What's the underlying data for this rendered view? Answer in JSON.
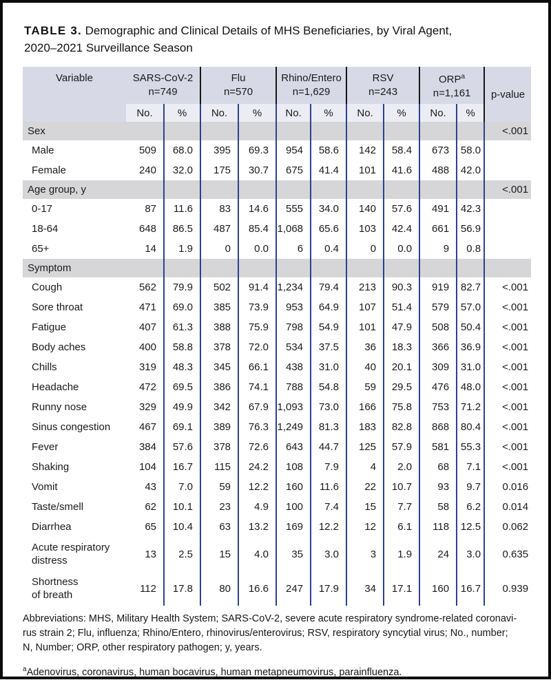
{
  "title": {
    "label": "TABLE 3.",
    "text": "Demographic and Clinical Details of MHS Beneficiaries, by Viral Agent,\n2020–2021 Surveillance Season"
  },
  "colors": {
    "header_bg": "#d7d9e6",
    "subheader_bg": "#ebecf4",
    "section_band_bg": "#d6d6d9",
    "rule_blue": "#2a418f",
    "rule_black": "#161616"
  },
  "table": {
    "variable_header": "Variable",
    "pvalue_header": "p-value",
    "groups": [
      {
        "name": "SARS-CoV-2",
        "n": "n=749"
      },
      {
        "name": "Flu",
        "n": "n=570"
      },
      {
        "name": "Rhino/Entero",
        "n": "n=1,629"
      },
      {
        "name": "RSV",
        "n": "n=243"
      },
      {
        "name": "ORP",
        "sup": "a",
        "n": "n=1,161"
      }
    ],
    "subheaders": {
      "no": "No.",
      "pct": "%"
    },
    "rows": [
      {
        "type": "section",
        "label": "Sex",
        "p": "<.001"
      },
      {
        "type": "data",
        "label": "Male",
        "values": [
          "509",
          "68.0",
          "395",
          "69.3",
          "954",
          "58.6",
          "142",
          "58.4",
          "673",
          "58.0"
        ],
        "p": ""
      },
      {
        "type": "data",
        "label": "Female",
        "values": [
          "240",
          "32.0",
          "175",
          "30.7",
          "675",
          "41.4",
          "101",
          "41.6",
          "488",
          "42.0"
        ],
        "p": ""
      },
      {
        "type": "section",
        "label": "Age group, y",
        "p": "<.001"
      },
      {
        "type": "data",
        "label": "0-17",
        "values": [
          "87",
          "11.6",
          "83",
          "14.6",
          "555",
          "34.0",
          "140",
          "57.6",
          "491",
          "42.3"
        ],
        "p": ""
      },
      {
        "type": "data",
        "label": "18-64",
        "values": [
          "648",
          "86.5",
          "487",
          "85.4",
          "1,068",
          "65.6",
          "103",
          "42.4",
          "661",
          "56.9"
        ],
        "p": ""
      },
      {
        "type": "data",
        "label": "65+",
        "values": [
          "14",
          "1.9",
          "0",
          "0.0",
          "6",
          "0.4",
          "0",
          "0.0",
          "9",
          "0.8"
        ],
        "p": ""
      },
      {
        "type": "section",
        "label": "Symptom",
        "p": ""
      },
      {
        "type": "data",
        "label": "Cough",
        "values": [
          "562",
          "79.9",
          "502",
          "91.4",
          "1,234",
          "79.4",
          "213",
          "90.3",
          "919",
          "82.7"
        ],
        "p": "<.001"
      },
      {
        "type": "data",
        "label": "Sore throat",
        "values": [
          "471",
          "69.0",
          "385",
          "73.9",
          "953",
          "64.9",
          "107",
          "51.4",
          "579",
          "57.0"
        ],
        "p": "<.001"
      },
      {
        "type": "data",
        "label": "Fatigue",
        "values": [
          "407",
          "61.3",
          "388",
          "75.9",
          "798",
          "54.9",
          "101",
          "47.9",
          "508",
          "50.4"
        ],
        "p": "<.001"
      },
      {
        "type": "data",
        "label": "Body aches",
        "values": [
          "400",
          "58.8",
          "378",
          "72.0",
          "534",
          "37.5",
          "36",
          "18.3",
          "366",
          "36.9"
        ],
        "p": "<.001"
      },
      {
        "type": "data",
        "label": "Chills",
        "values": [
          "319",
          "48.3",
          "345",
          "66.1",
          "438",
          "31.0",
          "40",
          "20.1",
          "309",
          "31.0"
        ],
        "p": "<.001"
      },
      {
        "type": "data",
        "label": "Headache",
        "values": [
          "472",
          "69.5",
          "386",
          "74.1",
          "788",
          "54.8",
          "59",
          "29.5",
          "476",
          "48.0"
        ],
        "p": "<.001"
      },
      {
        "type": "data",
        "label": "Runny nose",
        "values": [
          "329",
          "49.9",
          "342",
          "67.9",
          "1,093",
          "73.0",
          "166",
          "75.8",
          "753",
          "71.2"
        ],
        "p": "<.001"
      },
      {
        "type": "data",
        "label": "Sinus congestion",
        "values": [
          "467",
          "69.1",
          "389",
          "76.3",
          "1,249",
          "81.3",
          "183",
          "82.8",
          "868",
          "80.4"
        ],
        "p": "<.001"
      },
      {
        "type": "data",
        "label": "Fever",
        "values": [
          "384",
          "57.6",
          "378",
          "72.6",
          "643",
          "44.7",
          "125",
          "57.9",
          "581",
          "55.3"
        ],
        "p": "<.001"
      },
      {
        "type": "data",
        "label": "Shaking",
        "values": [
          "104",
          "16.7",
          "115",
          "24.2",
          "108",
          "7.9",
          "4",
          "2.0",
          "68",
          "7.1"
        ],
        "p": "<.001"
      },
      {
        "type": "data",
        "label": "Vomit",
        "values": [
          "43",
          "7.0",
          "59",
          "12.2",
          "160",
          "11.6",
          "22",
          "10.7",
          "93",
          "9.7"
        ],
        "p": "0.016"
      },
      {
        "type": "data",
        "label": "Taste/smell",
        "values": [
          "62",
          "10.1",
          "23",
          "4.9",
          "100",
          "7.4",
          "15",
          "7.7",
          "58",
          "6.2"
        ],
        "p": "0.014"
      },
      {
        "type": "data",
        "label": "Diarrhea",
        "values": [
          "65",
          "10.4",
          "63",
          "13.2",
          "169",
          "12.2",
          "12",
          "6.1",
          "118",
          "12.5"
        ],
        "p": "0.062"
      },
      {
        "type": "data",
        "tall": true,
        "label": "Acute respiratory\ndistress",
        "values": [
          "13",
          "2.5",
          "15",
          "4.0",
          "35",
          "3.0",
          "3",
          "1.9",
          "24",
          "3.0"
        ],
        "p": "0.635"
      },
      {
        "type": "data",
        "tall": true,
        "label": "Shortness\nof breath",
        "values": [
          "112",
          "17.8",
          "80",
          "16.6",
          "247",
          "17.9",
          "34",
          "17.1",
          "160",
          "16.7"
        ],
        "p": "0.939"
      }
    ]
  },
  "footnotes": {
    "abbreviations": "Abbreviations: MHS, Military Health System; SARS-CoV-2, severe acute respiratory syndrome-related coronavi-\nrus strain 2; Flu, influenza; Rhino/Entero, rhinovirus/enterovirus; RSV, respiratory syncytial virus; No., number;\nN, Number; ORP, other respiratory pathogen; y, years.",
    "note_a_marker": "a",
    "note_a": "Adenovirus, coronavirus, human bocavirus, human metapneumovirus, parainfluenza."
  }
}
